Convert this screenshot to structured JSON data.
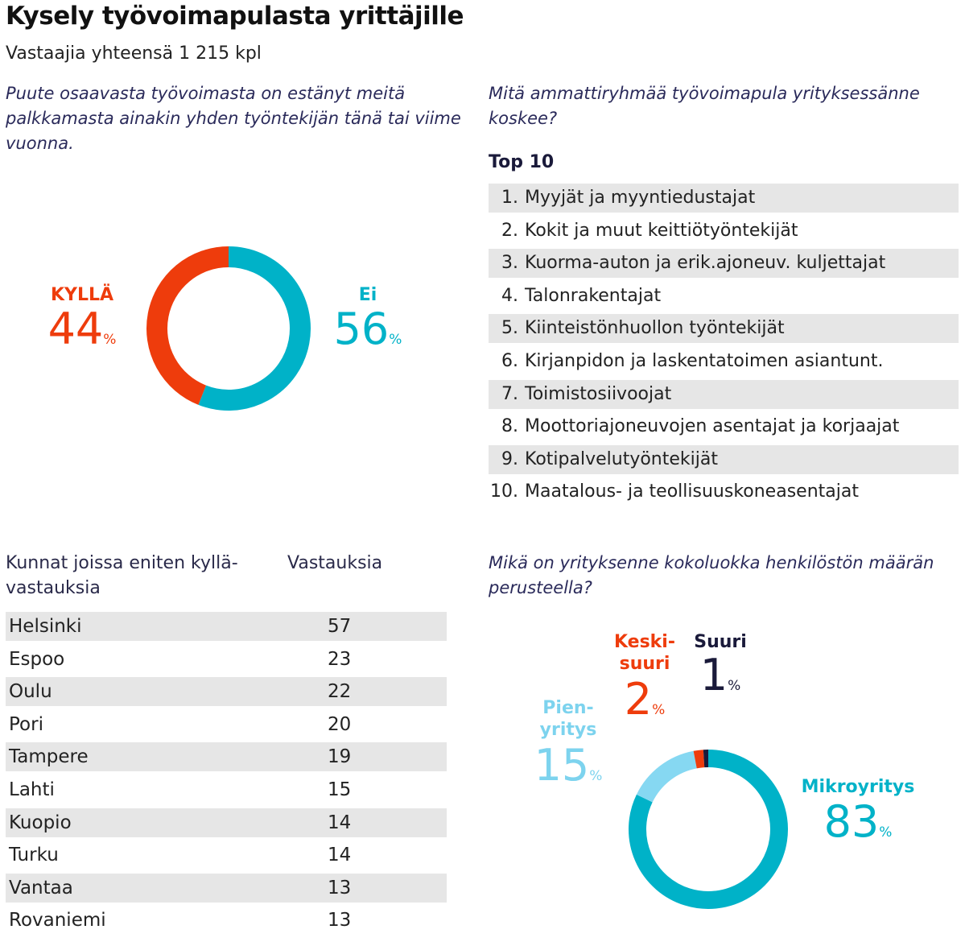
{
  "header": {
    "title": "Kysely työvoimapulasta yrittäjille",
    "subtitle": "Vastaajia yhteensä 1 215 kpl"
  },
  "questions": {
    "q1": "Puute osaavasta työvoimasta on estänyt meitä palkkamasta ainakin yhden työntekijän tänä tai viime vuonna.",
    "q2": "Mitä ammattiryhmää työvoimapula yrityksessänne koskee?",
    "q4": "Mikä on yrityksenne kokoluokka henkilöstön määrän perusteella?"
  },
  "percent_sign": "%",
  "chart_data": [
    {
      "type": "pie",
      "categories": [
        "KYLLÄ",
        "Ei"
      ],
      "values": [
        44,
        56
      ],
      "colors": [
        "#ee3c0c",
        "#00b2c8"
      ]
    },
    {
      "type": "table",
      "title": "Top 10",
      "rows": [
        {
          "rank": "1.",
          "label": "Myyjät ja myyntiedustajat"
        },
        {
          "rank": "2.",
          "label": "Kokit ja muut keittiötyöntekijät"
        },
        {
          "rank": "3.",
          "label": "Kuorma-auton ja erik.ajoneuv. kuljettajat"
        },
        {
          "rank": "4.",
          "label": "Talonrakentajat"
        },
        {
          "rank": "5.",
          "label": "Kiinteistönhuollon työntekijät"
        },
        {
          "rank": "6.",
          "label": "Kirjanpidon ja laskentatoimen asiantunt."
        },
        {
          "rank": "7.",
          "label": "Toimistosiivoojat"
        },
        {
          "rank": "8.",
          "label": "Moottoriajoneuvojen asentajat ja korjaajat"
        },
        {
          "rank": "9.",
          "label": "Kotipalvelutyöntekijät"
        },
        {
          "rank": "10.",
          "label": "Maatalous- ja teollisuuskoneasentajat"
        }
      ]
    },
    {
      "type": "table",
      "columns": [
        "Kunnat joissa eniten kyllä-vastauksia",
        "Vastauksia"
      ],
      "rows": [
        {
          "name": "Helsinki",
          "value": 57
        },
        {
          "name": "Espoo",
          "value": 23
        },
        {
          "name": "Oulu",
          "value": 22
        },
        {
          "name": "Pori",
          "value": 20
        },
        {
          "name": "Tampere",
          "value": 19
        },
        {
          "name": "Lahti",
          "value": 15
        },
        {
          "name": "Kuopio",
          "value": 14
        },
        {
          "name": "Turku",
          "value": 14
        },
        {
          "name": "Vantaa",
          "value": 13
        },
        {
          "name": "Rovaniemi",
          "value": 13
        }
      ]
    },
    {
      "type": "pie",
      "categories": [
        "Mikroyritys",
        "Pien-yritys",
        "Keski-suuri",
        "Suuri"
      ],
      "label_lines": [
        [
          "Mikroyritys"
        ],
        [
          "Pien-",
          "yritys"
        ],
        [
          "Keski-",
          "suuri"
        ],
        [
          "Suuri"
        ]
      ],
      "values": [
        83,
        15,
        2,
        1
      ],
      "colors": [
        "#00b2c8",
        "#86d8f2",
        "#ee3c0c",
        "#1a1a3a"
      ]
    }
  ]
}
